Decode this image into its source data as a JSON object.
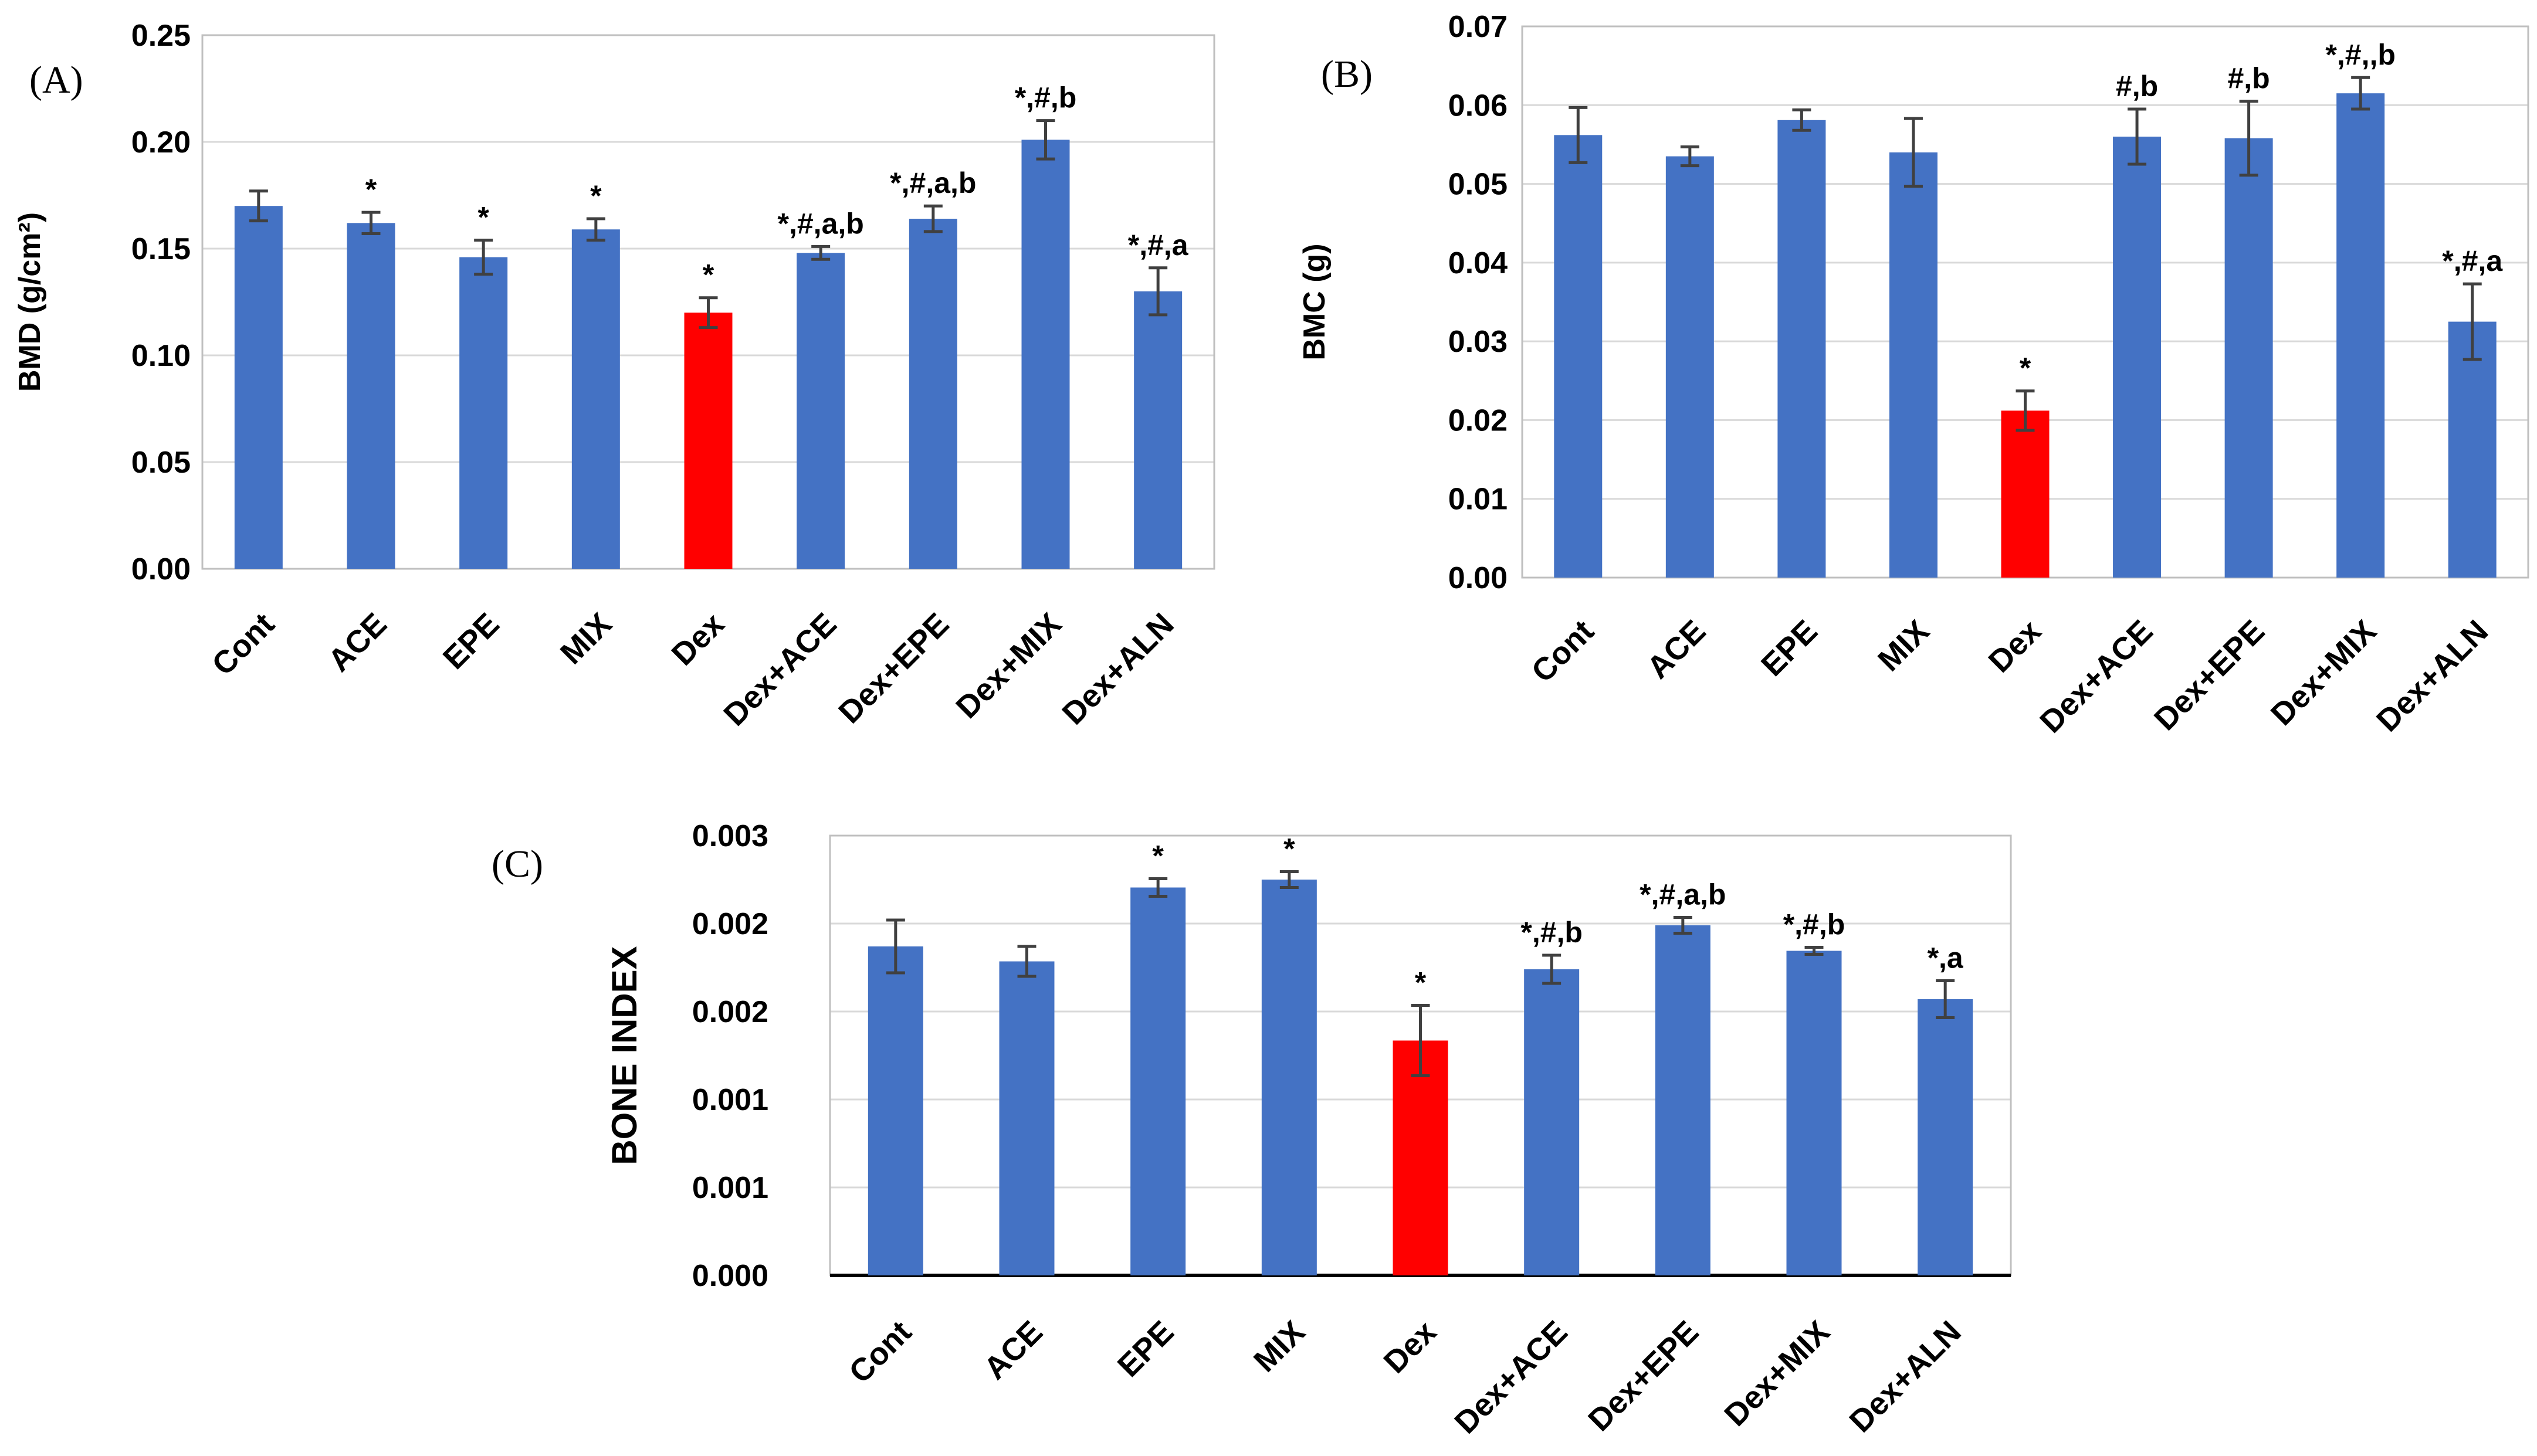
{
  "chart_data": [
    {
      "type": "bar",
      "panel_label": "(A)",
      "ylabel": "BMD (g/cm²)",
      "ylim": [
        0,
        0.25
      ],
      "yticks": [
        "0.00",
        "0.05",
        "0.10",
        "0.15",
        "0.20",
        "0.25"
      ],
      "grid": true,
      "categories": [
        "Cont",
        "ACE",
        "EPE",
        "MIX",
        "Dex",
        "Dex+ACE",
        "Dex+EPE",
        "Dex+MIX",
        "Dex+ALN"
      ],
      "values": [
        0.17,
        0.162,
        0.146,
        0.159,
        0.12,
        0.148,
        0.164,
        0.201,
        0.13
      ],
      "errors": [
        0.007,
        0.005,
        0.008,
        0.005,
        0.007,
        0.003,
        0.006,
        0.009,
        0.011
      ],
      "annotations": [
        "",
        "*",
        "*",
        "*",
        "*",
        "*,#,a,b",
        "*,#,a,b",
        "*,#,b",
        "*,#,a"
      ],
      "colors": [
        "#4472c4",
        "#4472c4",
        "#4472c4",
        "#4472c4",
        "#ff0000",
        "#4472c4",
        "#4472c4",
        "#4472c4",
        "#4472c4"
      ]
    },
    {
      "type": "bar",
      "panel_label": "(B)",
      "ylabel": "BMC (g)",
      "ylim": [
        0,
        0.07
      ],
      "yticks": [
        "0.00",
        "0.01",
        "0.02",
        "0.03",
        "0.04",
        "0.05",
        "0.06",
        "0.07"
      ],
      "grid": true,
      "categories": [
        "Cont",
        "ACE",
        "EPE",
        "MIX",
        "Dex",
        "Dex+ACE",
        "Dex+EPE",
        "Dex+MIX",
        "Dex+ALN"
      ],
      "values": [
        0.0562,
        0.0535,
        0.0581,
        0.054,
        0.0212,
        0.056,
        0.0558,
        0.0615,
        0.0325
      ],
      "errors": [
        0.0035,
        0.0012,
        0.0013,
        0.0043,
        0.0025,
        0.0035,
        0.0047,
        0.002,
        0.0048
      ],
      "annotations": [
        "",
        "",
        "",
        "",
        "*",
        "#,b",
        "#,b",
        "*,#,,b",
        "*,#,a"
      ],
      "colors": [
        "#4472c4",
        "#4472c4",
        "#4472c4",
        "#4472c4",
        "#ff0000",
        "#4472c4",
        "#4472c4",
        "#4472c4",
        "#4472c4"
      ]
    },
    {
      "type": "bar",
      "panel_label": "(C)",
      "ylabel": "BONE INDEX",
      "ylim": [
        0,
        0.0025
      ],
      "yticks": [
        "0.000",
        "0.001",
        "0.001",
        "0.002",
        "0.002",
        "0.003"
      ],
      "grid": true,
      "categories": [
        "Cont",
        "ACE",
        "EPE",
        "MIX",
        "Dex",
        "Dex+ACE",
        "Dex+EPE",
        "Dex+MIX",
        "Dex+ALN"
      ],
      "values": [
        0.00187,
        0.001785,
        0.002205,
        0.00225,
        0.001335,
        0.00174,
        0.00199,
        0.001845,
        0.00157
      ],
      "errors": [
        0.00015,
        8.5e-05,
        5e-05,
        4.5e-05,
        0.0002,
        8e-05,
        4.5e-05,
        2e-05,
        0.000105
      ],
      "annotations": [
        "",
        "",
        "*",
        "*",
        "*",
        "*,#,b",
        "*,#,a,b",
        "*,#,b",
        "*,a"
      ],
      "colors": [
        "#4472c4",
        "#4472c4",
        "#4472c4",
        "#4472c4",
        "#ff0000",
        "#4472c4",
        "#4472c4",
        "#4472c4",
        "#4472c4"
      ]
    }
  ]
}
